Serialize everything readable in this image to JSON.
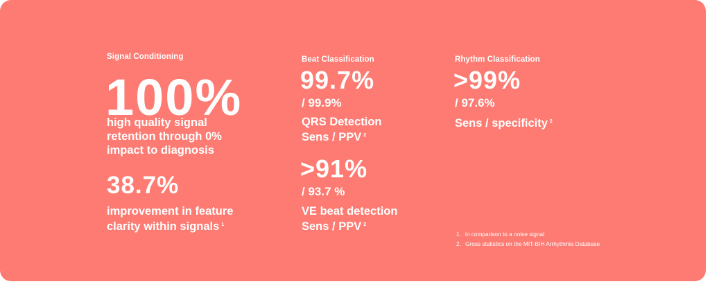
{
  "signal_conditioning": {
    "label": "Signal Conditioning",
    "primary_value": "100%",
    "primary_desc": [
      "high quality signal",
      "retention through 0%",
      "impact to diagnosis"
    ],
    "secondary_value": "38.7%",
    "secondary_desc": [
      "improvement in feature",
      "clarity within signals"
    ],
    "secondary_ref": "1"
  },
  "beat_classification": {
    "label": "Beat Classification",
    "qrs_value": "99.7%",
    "qrs_secondary": "/ 99.9%",
    "qrs_desc": [
      "QRS Detection",
      "Sens / PPV"
    ],
    "qrs_ref": "2",
    "ve_value": ">91%",
    "ve_secondary": "/ 93.7 %",
    "ve_desc": [
      "VE beat detection",
      "Sens / PPV"
    ],
    "ve_ref": "2"
  },
  "rhythm_classification": {
    "label": "Rhythm Classification",
    "value": ">99%",
    "secondary": "/ 97.6%",
    "desc": "Sens / specificity",
    "ref": "2"
  },
  "footnotes": [
    {
      "num": "1.",
      "text": "in comparison to a noise signal"
    },
    {
      "num": "2.",
      "text": "Gross statistics on the MIT-BIH Arrhythmia Database"
    }
  ],
  "colors": {
    "background": "#fe7b73",
    "text": "#ffffff"
  }
}
